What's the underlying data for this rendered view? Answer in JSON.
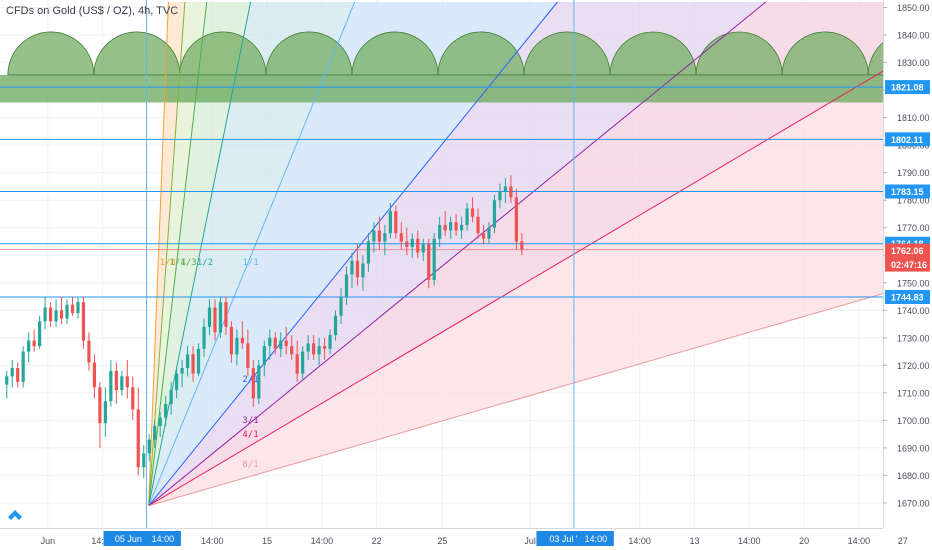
{
  "header": {
    "title": "CFDs on Gold (US$ / OZ), 4h, TVC"
  },
  "colors": {
    "background": "#ffffff",
    "grid": "#eef1f5",
    "axis_text": "#4a4f5c",
    "up_candle": "#26a69a",
    "down_candle": "#ef5350",
    "horizontal_line": "#2196f3",
    "current_price_line": "#ef5350",
    "semicircle_fill": "#7cb26b",
    "semicircle_band": "#6aa85c",
    "vertical_line": "#64b5f6",
    "date_badge": "#1e88e5",
    "price_badge": "#2196f3",
    "current_badge": "#ef5350"
  },
  "icons": {
    "logo": "tradingview-logo-icon"
  },
  "chart_data": {
    "type": "candlestick",
    "title": "CFDs on Gold (US$ / OZ), 4h, TVC",
    "timeframe": "4h",
    "source": "TVC",
    "grid": true,
    "ylim": [
      1662,
      1852
    ],
    "y_ticks": [
      1670,
      1680,
      1690,
      1700,
      1710,
      1720,
      1730,
      1740,
      1750,
      1760,
      1770,
      1780,
      1790,
      1800,
      1810,
      1820,
      1830,
      1840,
      1850
    ],
    "x_ticks": [
      {
        "label": "Jun",
        "bar": 8
      },
      {
        "label": "14:00",
        "bar": 18
      },
      {
        "label": "14:00",
        "bar": 38
      },
      {
        "label": "15",
        "bar": 48
      },
      {
        "label": "14:00",
        "bar": 58
      },
      {
        "label": "22",
        "bar": 68
      },
      {
        "label": "25",
        "bar": 80
      },
      {
        "label": "Jul",
        "bar": 96
      },
      {
        "label": "14:00",
        "bar": 116
      },
      {
        "label": "13",
        "bar": 126
      },
      {
        "label": "14:00",
        "bar": 136
      },
      {
        "label": "20",
        "bar": 146
      },
      {
        "label": "14:00",
        "bar": 156
      },
      {
        "label": "27",
        "bar": 164
      }
    ],
    "date_badges": [
      {
        "label": "05 Jun '20",
        "bar": 24
      },
      {
        "label": "14:00",
        "bar": 29
      },
      {
        "label": "03 Jul '20",
        "bar": 103
      },
      {
        "label": "14:00",
        "bar": 108
      }
    ],
    "price_levels": [
      {
        "label": "1821.08",
        "value": 1821.08,
        "kind": "line"
      },
      {
        "label": "1802.11",
        "value": 1802.11,
        "kind": "line"
      },
      {
        "label": "1783.15",
        "value": 1783.15,
        "kind": "line"
      },
      {
        "label": "1764.18",
        "value": 1764.18,
        "kind": "line"
      },
      {
        "label": "1744.83",
        "value": 1744.83,
        "kind": "line"
      }
    ],
    "current_price": {
      "label": "1762.06",
      "value": 1762.06,
      "countdown": "02:47:16"
    },
    "vertical_lines": [
      26,
      104
    ],
    "semicircles": {
      "value_bottom": 1815.5,
      "value_top": 1825.5,
      "period_bars": 15.7,
      "first_center_bar": 0.7,
      "count": 11
    },
    "gann_fan": {
      "origin": {
        "bar": 26.4,
        "value": 1669
      },
      "lines": [
        {
          "label": "1/8",
          "to_bar": 30,
          "to_value": 1852,
          "color": "#f0a23a"
        },
        {
          "label": "1/4",
          "to_bar": 33,
          "to_value": 1852,
          "color": "#7fb24a"
        },
        {
          "label": "1/3",
          "to_bar": 37,
          "to_value": 1852,
          "color": "#4caf50"
        },
        {
          "label": "1/2",
          "to_bar": 45,
          "to_value": 1852,
          "color": "#26a69a"
        },
        {
          "label": "1/1",
          "to_bar": 64,
          "to_value": 1852,
          "color": "#64b5f6"
        },
        {
          "label": "2/1",
          "to_bar": 101,
          "to_value": 1852,
          "color": "#2962ff"
        },
        {
          "label": "3/1",
          "to_bar": 139,
          "to_value": 1852,
          "color": "#8e24aa"
        },
        {
          "label": "4/1",
          "to_bar": 169,
          "to_value": 1837,
          "color": "#e91e63"
        },
        {
          "label": "8/1",
          "to_bar": 169,
          "to_value": 1751,
          "color": "#ef9a9a"
        }
      ],
      "label_positions": [
        {
          "label": "1/8",
          "bar": 28.4,
          "value": 1756.5
        },
        {
          "label": "1/4",
          "bar": 30.2,
          "value": 1756.5
        },
        {
          "label": "1/3",
          "bar": 32.2,
          "value": 1756.5
        },
        {
          "label": "1/2",
          "bar": 35.2,
          "value": 1756.5
        },
        {
          "label": "1/1",
          "bar": 43.5,
          "value": 1756.5
        },
        {
          "label": "2/1",
          "bar": 43.5,
          "value": 1714
        },
        {
          "label": "3/1",
          "bar": 43.5,
          "value": 1699
        },
        {
          "label": "4/1",
          "bar": 43.5,
          "value": 1694
        },
        {
          "label": "8/1",
          "bar": 43.5,
          "value": 1683
        }
      ]
    },
    "candles": [
      [
        1713,
        1718,
        1708,
        1716
      ],
      [
        1716,
        1722,
        1712,
        1719
      ],
      [
        1719,
        1721,
        1712,
        1714
      ],
      [
        1714,
        1727,
        1712,
        1725
      ],
      [
        1725,
        1732,
        1721,
        1729
      ],
      [
        1729,
        1733,
        1725,
        1727
      ],
      [
        1727,
        1738,
        1726,
        1736
      ],
      [
        1736,
        1745,
        1733,
        1741
      ],
      [
        1741,
        1743,
        1734,
        1736
      ],
      [
        1736,
        1744,
        1734,
        1740
      ],
      [
        1740,
        1745,
        1735,
        1737
      ],
      [
        1737,
        1744,
        1735,
        1742
      ],
      [
        1742,
        1745,
        1738,
        1739
      ],
      [
        1739,
        1745,
        1737,
        1743
      ],
      [
        1743,
        1745,
        1726,
        1729
      ],
      [
        1729,
        1732,
        1718,
        1721
      ],
      [
        1721,
        1724,
        1708,
        1712
      ],
      [
        1712,
        1714,
        1690,
        1699
      ],
      [
        1699,
        1712,
        1694,
        1707
      ],
      [
        1707,
        1722,
        1705,
        1718
      ],
      [
        1718,
        1721,
        1706,
        1711
      ],
      [
        1711,
        1718,
        1709,
        1716
      ],
      [
        1716,
        1722,
        1708,
        1712
      ],
      [
        1712,
        1716,
        1700,
        1704
      ],
      [
        1704,
        1712,
        1680,
        1683
      ],
      [
        1683,
        1691,
        1679,
        1688
      ],
      [
        1688,
        1695,
        1685,
        1693
      ],
      [
        1693,
        1700,
        1690,
        1698
      ],
      [
        1698,
        1703,
        1694,
        1701
      ],
      [
        1701,
        1709,
        1698,
        1706
      ],
      [
        1706,
        1714,
        1702,
        1711
      ],
      [
        1711,
        1719,
        1708,
        1717
      ],
      [
        1717,
        1722,
        1712,
        1719
      ],
      [
        1719,
        1727,
        1716,
        1724
      ],
      [
        1724,
        1727,
        1714,
        1717
      ],
      [
        1717,
        1728,
        1716,
        1726
      ],
      [
        1726,
        1737,
        1723,
        1734
      ],
      [
        1734,
        1744,
        1731,
        1741
      ],
      [
        1741,
        1744,
        1729,
        1732
      ],
      [
        1732,
        1745,
        1730,
        1743
      ],
      [
        1743,
        1745,
        1731,
        1734
      ],
      [
        1734,
        1736,
        1721,
        1724
      ],
      [
        1724,
        1733,
        1720,
        1730
      ],
      [
        1730,
        1736,
        1726,
        1728
      ],
      [
        1728,
        1733,
        1716,
        1719
      ],
      [
        1719,
        1722,
        1705,
        1708
      ],
      [
        1708,
        1722,
        1706,
        1720
      ],
      [
        1720,
        1729,
        1716,
        1727
      ],
      [
        1727,
        1733,
        1722,
        1730
      ],
      [
        1730,
        1732,
        1724,
        1726
      ],
      [
        1726,
        1732,
        1723,
        1729
      ],
      [
        1729,
        1734,
        1724,
        1727
      ],
      [
        1727,
        1731,
        1722,
        1724
      ],
      [
        1724,
        1729,
        1714,
        1717
      ],
      [
        1717,
        1727,
        1715,
        1725
      ],
      [
        1725,
        1731,
        1722,
        1728
      ],
      [
        1728,
        1731,
        1722,
        1724
      ],
      [
        1724,
        1730,
        1720,
        1727
      ],
      [
        1727,
        1730,
        1722,
        1726
      ],
      [
        1726,
        1733,
        1724,
        1731
      ],
      [
        1731,
        1740,
        1729,
        1738
      ],
      [
        1738,
        1748,
        1735,
        1745
      ],
      [
        1745,
        1756,
        1742,
        1753
      ],
      [
        1753,
        1761,
        1748,
        1758
      ],
      [
        1758,
        1764,
        1749,
        1752
      ],
      [
        1752,
        1760,
        1747,
        1757
      ],
      [
        1757,
        1768,
        1754,
        1765
      ],
      [
        1765,
        1772,
        1761,
        1769
      ],
      [
        1769,
        1774,
        1762,
        1765
      ],
      [
        1765,
        1771,
        1760,
        1768
      ],
      [
        1768,
        1779,
        1766,
        1776
      ],
      [
        1776,
        1778,
        1766,
        1768
      ],
      [
        1768,
        1772,
        1762,
        1765
      ],
      [
        1765,
        1770,
        1760,
        1763
      ],
      [
        1763,
        1768,
        1759,
        1766
      ],
      [
        1766,
        1769,
        1759,
        1761
      ],
      [
        1761,
        1766,
        1758,
        1764
      ],
      [
        1764,
        1766,
        1748,
        1751
      ],
      [
        1751,
        1768,
        1749,
        1766
      ],
      [
        1766,
        1774,
        1763,
        1771
      ],
      [
        1771,
        1776,
        1767,
        1769
      ],
      [
        1769,
        1774,
        1766,
        1772
      ],
      [
        1772,
        1775,
        1767,
        1769
      ],
      [
        1769,
        1774,
        1766,
        1771
      ],
      [
        1771,
        1779,
        1769,
        1777
      ],
      [
        1777,
        1781,
        1772,
        1774
      ],
      [
        1774,
        1777,
        1766,
        1768
      ],
      [
        1768,
        1771,
        1764,
        1766
      ],
      [
        1766,
        1772,
        1764,
        1770
      ],
      [
        1770,
        1782,
        1768,
        1780
      ],
      [
        1780,
        1786,
        1777,
        1783
      ],
      [
        1783,
        1788,
        1779,
        1785
      ],
      [
        1785,
        1789,
        1779,
        1781
      ],
      [
        1781,
        1784,
        1762,
        1765
      ],
      [
        1765,
        1768,
        1760,
        1762
      ]
    ]
  }
}
